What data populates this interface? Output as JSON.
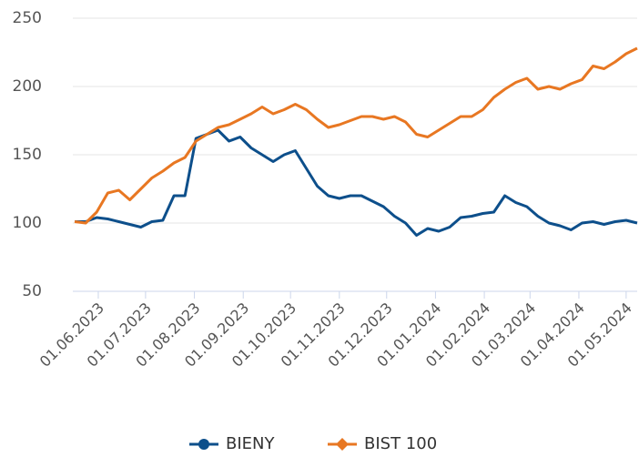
{
  "chart_data": {
    "type": "line",
    "x": [
      "17.05.2023",
      "24.05.2023",
      "31.05.2023",
      "07.06.2023",
      "14.06.2023",
      "21.06.2023",
      "28.06.2023",
      "05.07.2023",
      "12.07.2023",
      "19.07.2023",
      "26.07.2023",
      "02.08.2023",
      "09.08.2023",
      "16.08.2023",
      "23.08.2023",
      "30.08.2023",
      "06.09.2023",
      "13.09.2023",
      "20.09.2023",
      "27.09.2023",
      "04.10.2023",
      "11.10.2023",
      "18.10.2023",
      "25.10.2023",
      "01.11.2023",
      "08.11.2023",
      "15.11.2023",
      "22.11.2023",
      "29.11.2023",
      "06.12.2023",
      "13.12.2023",
      "20.12.2023",
      "27.12.2023",
      "03.01.2024",
      "10.01.2024",
      "17.01.2024",
      "24.01.2024",
      "31.01.2024",
      "07.02.2024",
      "14.02.2024",
      "21.02.2024",
      "28.02.2024",
      "06.03.2024",
      "13.03.2024",
      "20.03.2024",
      "27.03.2024",
      "03.04.2024",
      "10.04.2024",
      "17.04.2024",
      "24.04.2024",
      "01.05.2024",
      "08.05.2024"
    ],
    "series": [
      {
        "name": "BIENY",
        "color": "#0d4f8b",
        "marker": "circle",
        "values": [
          101,
          101,
          104,
          103,
          101,
          99,
          97,
          101,
          102,
          120,
          120,
          162,
          165,
          168,
          160,
          163,
          155,
          150,
          145,
          150,
          153,
          140,
          127,
          120,
          118,
          120,
          120,
          116,
          112,
          105,
          100,
          91,
          96,
          94,
          97,
          104,
          105,
          107,
          108,
          120,
          115,
          112,
          105,
          100,
          98,
          95,
          100,
          101,
          99,
          101,
          102,
          100
        ]
      },
      {
        "name": "BIST 100",
        "color": "#e87722",
        "marker": "diamond",
        "values": [
          101,
          100,
          108,
          122,
          124,
          117,
          125,
          133,
          138,
          144,
          148,
          160,
          165,
          170,
          172,
          176,
          180,
          185,
          180,
          183,
          187,
          183,
          176,
          170,
          172,
          175,
          178,
          178,
          176,
          178,
          174,
          165,
          163,
          168,
          173,
          178,
          178,
          183,
          192,
          198,
          203,
          206,
          198,
          200,
          198,
          202,
          205,
          215,
          213,
          218,
          224,
          228
        ]
      }
    ],
    "xlim": [
      "17.05.2023",
      "08.05.2024"
    ],
    "xticks": [
      "01.06.2023",
      "01.07.2023",
      "01.08.2023",
      "01.09.2023",
      "01.10.2023",
      "01.11.2023",
      "01.12.2023",
      "01.01.2024",
      "01.02.2024",
      "01.03.2024",
      "01.04.2024",
      "01.05.2024"
    ],
    "ylim": [
      50,
      250
    ],
    "yticks": [
      50,
      100,
      150,
      200,
      250
    ],
    "grid": true,
    "legend": "bottom"
  }
}
